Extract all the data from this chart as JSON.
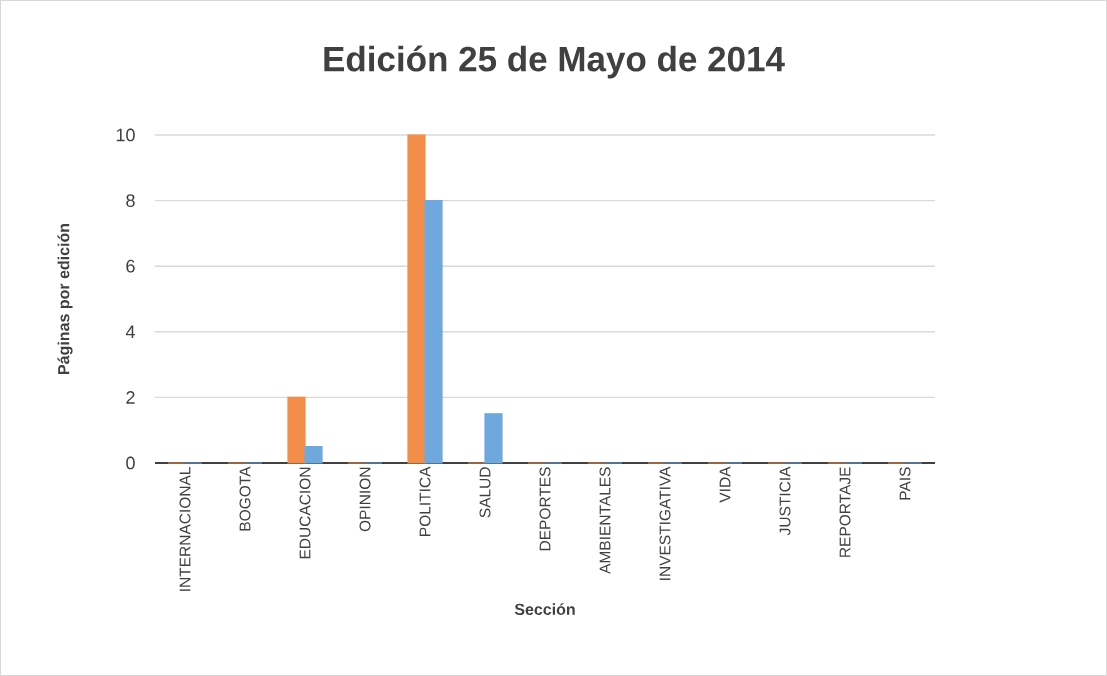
{
  "chart_data": {
    "type": "bar",
    "title": "Edición 25 de Mayo de 2014",
    "xlabel": "Sección",
    "ylabel": "Páginas por edición",
    "categories": [
      "INTERNACIONAL",
      "BOGOTA",
      "EDUCACION",
      "OPINION",
      "POLITICA",
      "SALUD",
      "DEPORTES",
      "AMBIENTALES",
      "INVESTIGATIVA",
      "VIDA",
      "JUSTICIA",
      "REPORTAJE",
      "PAIS"
    ],
    "series": [
      {
        "color": "#F28E4A",
        "values": [
          0,
          0,
          2,
          0,
          10,
          0,
          0,
          0,
          0,
          0,
          0,
          0,
          0
        ]
      },
      {
        "color": "#6FA8DC",
        "values": [
          0,
          0,
          0.5,
          0,
          8,
          1.5,
          0,
          0,
          0,
          0,
          0,
          0,
          0
        ]
      }
    ],
    "ylim": [
      0,
      10
    ],
    "yticks": [
      0,
      2,
      4,
      6,
      8,
      10
    ],
    "grid": "y"
  }
}
